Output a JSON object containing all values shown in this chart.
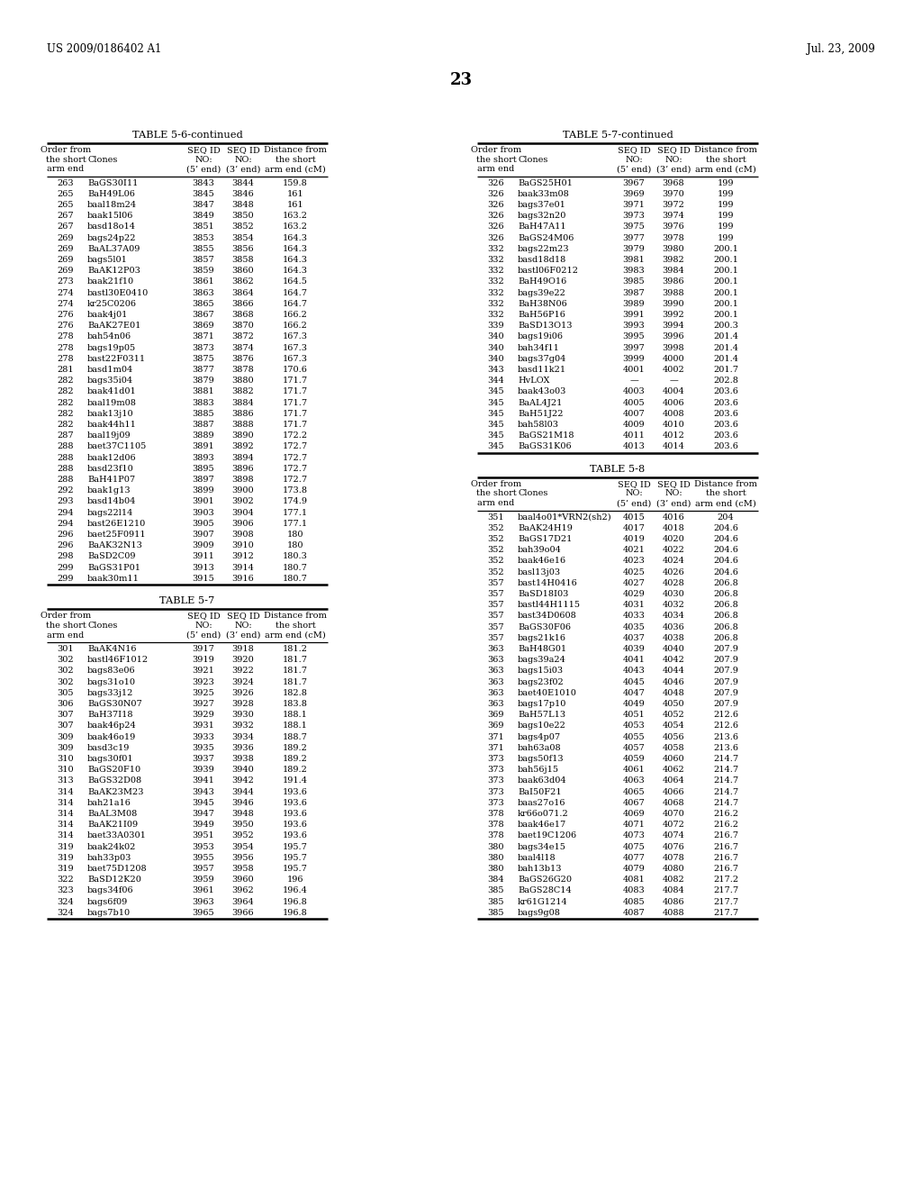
{
  "header_left": "US 2009/0186402 A1",
  "header_right": "Jul. 23, 2009",
  "page_number": "23",
  "background_color": "#ffffff",
  "text_color": "#000000",
  "table56_title": "TABLE 5-6-continued",
  "table57cont_title": "TABLE 5-7-continued",
  "table57_title": "TABLE 5-7",
  "table58_title": "TABLE 5-8",
  "col_headers": [
    "Order from\nthe short\narm end",
    "Clones",
    "SEQ ID\nNO:\n(5’ end)",
    "SEQ ID\nNO:\n(3’ end)",
    "Distance from\nthe short\narm end (cM)"
  ],
  "table56_data": [
    [
      "263",
      "BaGS30I11",
      "3843",
      "3844",
      "159.8"
    ],
    [
      "265",
      "BaH49L06",
      "3845",
      "3846",
      "161"
    ],
    [
      "265",
      "baal18m24",
      "3847",
      "3848",
      "161"
    ],
    [
      "267",
      "baak15l06",
      "3849",
      "3850",
      "163.2"
    ],
    [
      "267",
      "basd18o14",
      "3851",
      "3852",
      "163.2"
    ],
    [
      "269",
      "bags24p22",
      "3853",
      "3854",
      "164.3"
    ],
    [
      "269",
      "BaAL37A09",
      "3855",
      "3856",
      "164.3"
    ],
    [
      "269",
      "bags5l01",
      "3857",
      "3858",
      "164.3"
    ],
    [
      "269",
      "BaAK12P03",
      "3859",
      "3860",
      "164.3"
    ],
    [
      "273",
      "baak21f10",
      "3861",
      "3862",
      "164.5"
    ],
    [
      "274",
      "bastl30E0410",
      "3863",
      "3864",
      "164.7"
    ],
    [
      "274",
      "kr25C0206",
      "3865",
      "3866",
      "164.7"
    ],
    [
      "276",
      "baak4j01",
      "3867",
      "3868",
      "166.2"
    ],
    [
      "276",
      "BaAK27E01",
      "3869",
      "3870",
      "166.2"
    ],
    [
      "278",
      "bah54n06",
      "3871",
      "3872",
      "167.3"
    ],
    [
      "278",
      "bags19p05",
      "3873",
      "3874",
      "167.3"
    ],
    [
      "278",
      "bast22F0311",
      "3875",
      "3876",
      "167.3"
    ],
    [
      "281",
      "basd1m04",
      "3877",
      "3878",
      "170.6"
    ],
    [
      "282",
      "bags35i04",
      "3879",
      "3880",
      "171.7"
    ],
    [
      "282",
      "baak41d01",
      "3881",
      "3882",
      "171.7"
    ],
    [
      "282",
      "baal19m08",
      "3883",
      "3884",
      "171.7"
    ],
    [
      "282",
      "baak13j10",
      "3885",
      "3886",
      "171.7"
    ],
    [
      "282",
      "baak44h11",
      "3887",
      "3888",
      "171.7"
    ],
    [
      "287",
      "baal19j09",
      "3889",
      "3890",
      "172.2"
    ],
    [
      "288",
      "baet37C1105",
      "3891",
      "3892",
      "172.7"
    ],
    [
      "288",
      "baak12d06",
      "3893",
      "3894",
      "172.7"
    ],
    [
      "288",
      "basd23f10",
      "3895",
      "3896",
      "172.7"
    ],
    [
      "288",
      "BaH41P07",
      "3897",
      "3898",
      "172.7"
    ],
    [
      "292",
      "baak1g13",
      "3899",
      "3900",
      "173.8"
    ],
    [
      "293",
      "basd14b04",
      "3901",
      "3902",
      "174.9"
    ],
    [
      "294",
      "bags22l14",
      "3903",
      "3904",
      "177.1"
    ],
    [
      "294",
      "bast26E1210",
      "3905",
      "3906",
      "177.1"
    ],
    [
      "296",
      "baet25F0911",
      "3907",
      "3908",
      "180"
    ],
    [
      "296",
      "BaAK32N13",
      "3909",
      "3910",
      "180"
    ],
    [
      "298",
      "BaSD2C09",
      "3911",
      "3912",
      "180.3"
    ],
    [
      "299",
      "BaGS31P01",
      "3913",
      "3914",
      "180.7"
    ],
    [
      "299",
      "baak30m11",
      "3915",
      "3916",
      "180.7"
    ]
  ],
  "table57_data": [
    [
      "301",
      "BaAK4N16",
      "3917",
      "3918",
      "181.2"
    ],
    [
      "302",
      "bastl46F1012",
      "3919",
      "3920",
      "181.7"
    ],
    [
      "302",
      "bags83e06",
      "3921",
      "3922",
      "181.7"
    ],
    [
      "302",
      "bags31o10",
      "3923",
      "3924",
      "181.7"
    ],
    [
      "305",
      "bags33j12",
      "3925",
      "3926",
      "182.8"
    ],
    [
      "306",
      "BaGS30N07",
      "3927",
      "3928",
      "183.8"
    ],
    [
      "307",
      "BaH37I18",
      "3929",
      "3930",
      "188.1"
    ],
    [
      "307",
      "baak46p24",
      "3931",
      "3932",
      "188.1"
    ],
    [
      "309",
      "baak46o19",
      "3933",
      "3934",
      "188.7"
    ],
    [
      "309",
      "basd3c19",
      "3935",
      "3936",
      "189.2"
    ],
    [
      "310",
      "bags30f01",
      "3937",
      "3938",
      "189.2"
    ],
    [
      "310",
      "BaGS20F10",
      "3939",
      "3940",
      "189.2"
    ],
    [
      "313",
      "BaGS32D08",
      "3941",
      "3942",
      "191.4"
    ],
    [
      "314",
      "BaAK23M23",
      "3943",
      "3944",
      "193.6"
    ],
    [
      "314",
      "bah21a16",
      "3945",
      "3946",
      "193.6"
    ],
    [
      "314",
      "BaAL3M08",
      "3947",
      "3948",
      "193.6"
    ],
    [
      "314",
      "BaAK21I09",
      "3949",
      "3950",
      "193.6"
    ],
    [
      "314",
      "baet33A0301",
      "3951",
      "3952",
      "193.6"
    ],
    [
      "319",
      "baak24k02",
      "3953",
      "3954",
      "195.7"
    ],
    [
      "319",
      "bah33p03",
      "3955",
      "3956",
      "195.7"
    ],
    [
      "319",
      "baet75D1208",
      "3957",
      "3958",
      "195.7"
    ],
    [
      "322",
      "BaSD12K20",
      "3959",
      "3960",
      "196"
    ],
    [
      "323",
      "bags34f06",
      "3961",
      "3962",
      "196.4"
    ],
    [
      "324",
      "bags6f09",
      "3963",
      "3964",
      "196.8"
    ],
    [
      "324",
      "bags7b10",
      "3965",
      "3966",
      "196.8"
    ]
  ],
  "table57cont_data": [
    [
      "326",
      "BaGS25H01",
      "3967",
      "3968",
      "199"
    ],
    [
      "326",
      "baak33m08",
      "3969",
      "3970",
      "199"
    ],
    [
      "326",
      "bags37e01",
      "3971",
      "3972",
      "199"
    ],
    [
      "326",
      "bags32n20",
      "3973",
      "3974",
      "199"
    ],
    [
      "326",
      "BaH47A11",
      "3975",
      "3976",
      "199"
    ],
    [
      "326",
      "BaGS24M06",
      "3977",
      "3978",
      "199"
    ],
    [
      "332",
      "bags22m23",
      "3979",
      "3980",
      "200.1"
    ],
    [
      "332",
      "basd18d18",
      "3981",
      "3982",
      "200.1"
    ],
    [
      "332",
      "bastl06F0212",
      "3983",
      "3984",
      "200.1"
    ],
    [
      "332",
      "BaH49O16",
      "3985",
      "3986",
      "200.1"
    ],
    [
      "332",
      "bags39e22",
      "3987",
      "3988",
      "200.1"
    ],
    [
      "332",
      "BaH38N06",
      "3989",
      "3990",
      "200.1"
    ],
    [
      "332",
      "BaH56P16",
      "3991",
      "3992",
      "200.1"
    ],
    [
      "339",
      "BaSD13O13",
      "3993",
      "3994",
      "200.3"
    ],
    [
      "340",
      "bags19i06",
      "3995",
      "3996",
      "201.4"
    ],
    [
      "340",
      "bah34f11",
      "3997",
      "3998",
      "201.4"
    ],
    [
      "340",
      "bags37g04",
      "3999",
      "4000",
      "201.4"
    ],
    [
      "343",
      "basd11k21",
      "4001",
      "4002",
      "201.7"
    ],
    [
      "344",
      "HvLOX",
      "—",
      "—",
      "202.8"
    ],
    [
      "345",
      "baak43o03",
      "4003",
      "4004",
      "203.6"
    ],
    [
      "345",
      "BaAL4J21",
      "4005",
      "4006",
      "203.6"
    ],
    [
      "345",
      "BaH51J22",
      "4007",
      "4008",
      "203.6"
    ],
    [
      "345",
      "bah58l03",
      "4009",
      "4010",
      "203.6"
    ],
    [
      "345",
      "BaGS21M18",
      "4011",
      "4012",
      "203.6"
    ],
    [
      "345",
      "BaGS31K06",
      "4013",
      "4014",
      "203.6"
    ]
  ],
  "table58_data": [
    [
      "351",
      "baal4o01*VRN2(sh2)",
      "4015",
      "4016",
      "204"
    ],
    [
      "352",
      "BaAK24H19",
      "4017",
      "4018",
      "204.6"
    ],
    [
      "352",
      "BaGS17D21",
      "4019",
      "4020",
      "204.6"
    ],
    [
      "352",
      "bah39o04",
      "4021",
      "4022",
      "204.6"
    ],
    [
      "352",
      "baak46e16",
      "4023",
      "4024",
      "204.6"
    ],
    [
      "352",
      "basl13j03",
      "4025",
      "4026",
      "204.6"
    ],
    [
      "357",
      "bast14H0416",
      "4027",
      "4028",
      "206.8"
    ],
    [
      "357",
      "BaSD18I03",
      "4029",
      "4030",
      "206.8"
    ],
    [
      "357",
      "bastl44H1115",
      "4031",
      "4032",
      "206.8"
    ],
    [
      "357",
      "bast34D0608",
      "4033",
      "4034",
      "206.8"
    ],
    [
      "357",
      "BaGS30F06",
      "4035",
      "4036",
      "206.8"
    ],
    [
      "357",
      "bags21k16",
      "4037",
      "4038",
      "206.8"
    ],
    [
      "363",
      "BaH48G01",
      "4039",
      "4040",
      "207.9"
    ],
    [
      "363",
      "bags39a24",
      "4041",
      "4042",
      "207.9"
    ],
    [
      "363",
      "bags15i03",
      "4043",
      "4044",
      "207.9"
    ],
    [
      "363",
      "bags23f02",
      "4045",
      "4046",
      "207.9"
    ],
    [
      "363",
      "baet40E1010",
      "4047",
      "4048",
      "207.9"
    ],
    [
      "363",
      "bags17p10",
      "4049",
      "4050",
      "207.9"
    ],
    [
      "369",
      "BaH57L13",
      "4051",
      "4052",
      "212.6"
    ],
    [
      "369",
      "bags10e22",
      "4053",
      "4054",
      "212.6"
    ],
    [
      "371",
      "bags4p07",
      "4055",
      "4056",
      "213.6"
    ],
    [
      "371",
      "bah63a08",
      "4057",
      "4058",
      "213.6"
    ],
    [
      "373",
      "bags50f13",
      "4059",
      "4060",
      "214.7"
    ],
    [
      "373",
      "bah56j15",
      "4061",
      "4062",
      "214.7"
    ],
    [
      "373",
      "baak63d04",
      "4063",
      "4064",
      "214.7"
    ],
    [
      "373",
      "BaI50F21",
      "4065",
      "4066",
      "214.7"
    ],
    [
      "373",
      "baas27o16",
      "4067",
      "4068",
      "214.7"
    ],
    [
      "378",
      "kr66o071.2",
      "4069",
      "4070",
      "216.2"
    ],
    [
      "378",
      "baak46e17",
      "4071",
      "4072",
      "216.2"
    ],
    [
      "378",
      "baet19C1206",
      "4073",
      "4074",
      "216.7"
    ],
    [
      "380",
      "bags34e15",
      "4075",
      "4076",
      "216.7"
    ],
    [
      "380",
      "baal4l18",
      "4077",
      "4078",
      "216.7"
    ],
    [
      "380",
      "bah13b13",
      "4079",
      "4080",
      "216.7"
    ],
    [
      "384",
      "BaGS26G20",
      "4081",
      "4082",
      "217.2"
    ],
    [
      "385",
      "BaGS28C14",
      "4083",
      "4084",
      "217.7"
    ],
    [
      "385",
      "kr61G1214",
      "4085",
      "4086",
      "217.7"
    ],
    [
      "385",
      "bags9g08",
      "4087",
      "4088",
      "217.7"
    ]
  ]
}
